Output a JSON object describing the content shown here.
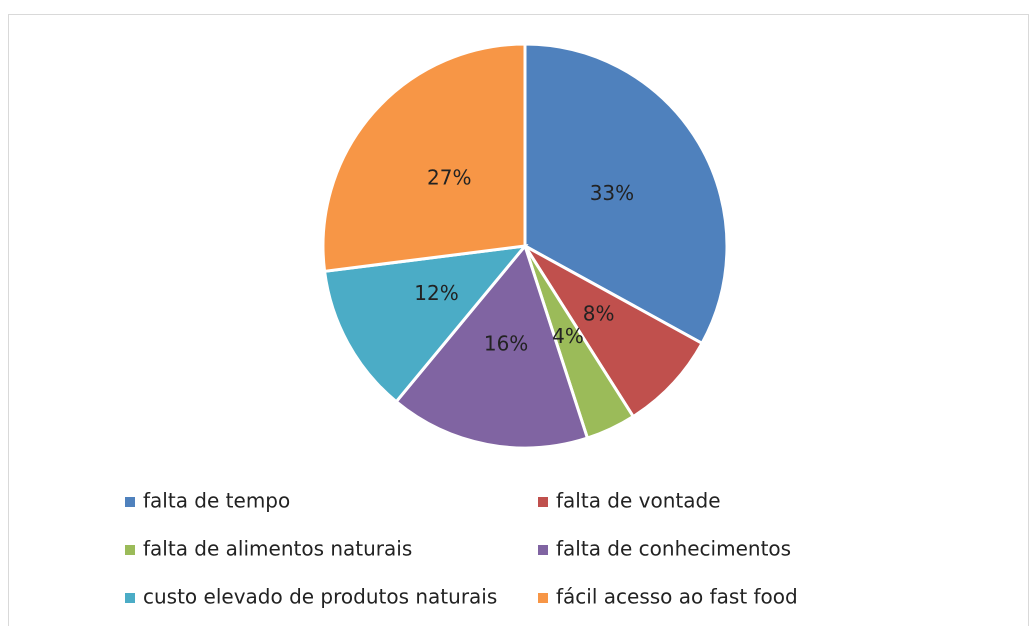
{
  "chart_data": {
    "type": "pie",
    "categories": [
      "falta de tempo",
      "falta de vontade",
      "falta de alimentos naturais",
      "falta de conhecimentos",
      "custo elevado de produtos naturais",
      "fácil acesso ao fast food"
    ],
    "values": [
      33,
      8,
      4,
      16,
      12,
      27
    ],
    "value_labels": [
      "33%",
      "8%",
      "4%",
      "16%",
      "12%",
      "27%"
    ],
    "colors": [
      "#4f81bd",
      "#c0504d",
      "#9bbb59",
      "#8064a2",
      "#4bacc6",
      "#f79646"
    ],
    "legend": "bottom"
  }
}
